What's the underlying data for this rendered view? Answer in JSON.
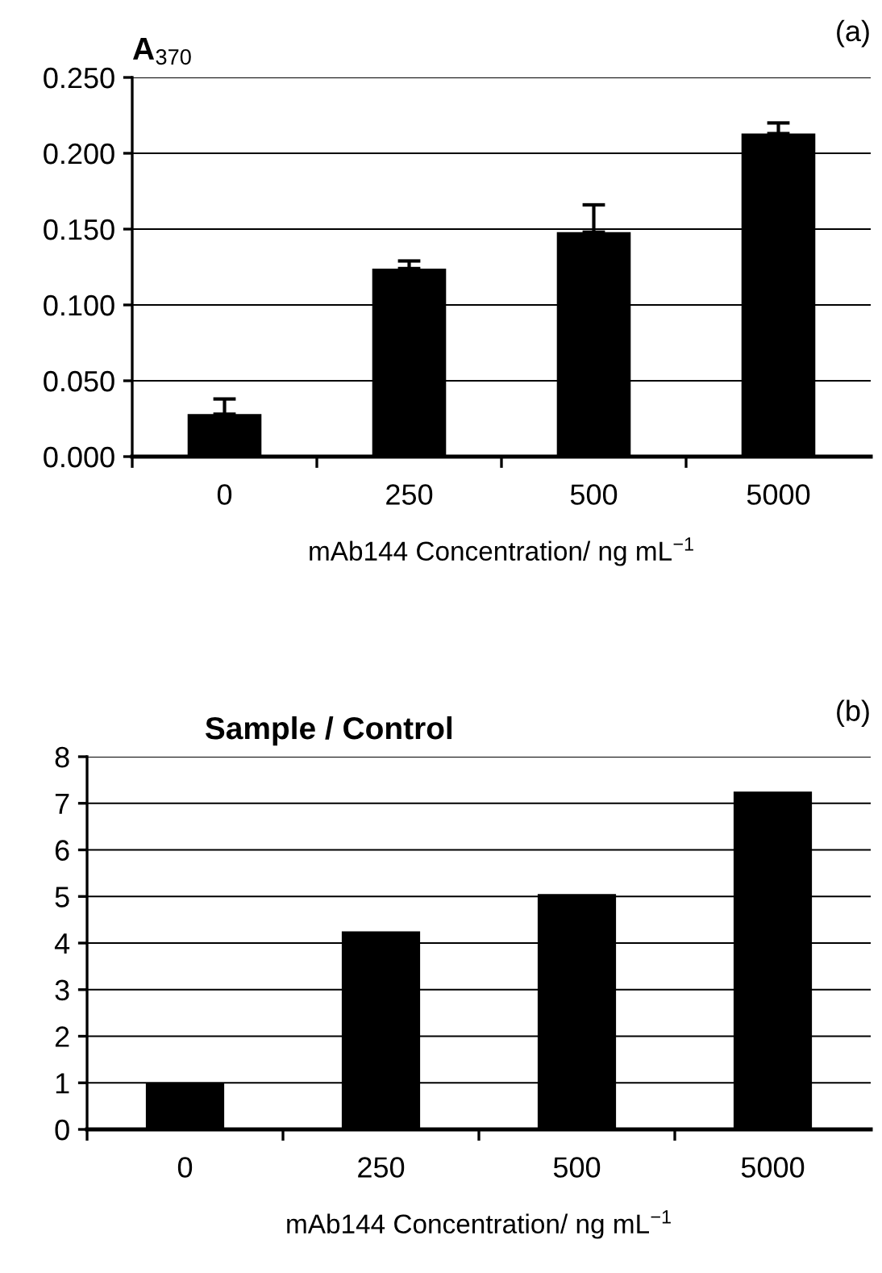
{
  "chart_data": [
    {
      "type": "bar",
      "ylabel": "A$_{370}$",
      "xlabel": "mAb144 Concentration/ ng mL$^{−1}$",
      "annotations": [
        "(a)"
      ],
      "categories": [
        "0",
        "250",
        "500",
        "5000"
      ],
      "values": [
        0.028,
        0.124,
        0.148,
        0.213
      ],
      "errors": [
        [
          0.028,
          0.038
        ],
        [
          0.124,
          0.129
        ],
        [
          0.148,
          0.166
        ],
        [
          0.213,
          0.22
        ]
      ],
      "color": "#000000",
      "ylim": [
        0,
        0.25
      ],
      "yticks": [
        {
          "value": 0,
          "label": "0.000"
        },
        {
          "value": 0.05,
          "label": "0.050"
        },
        {
          "value": 0.1,
          "label": "0.100"
        },
        {
          "value": 0.15,
          "label": "0.150"
        },
        {
          "value": 0.2,
          "label": "0.200"
        },
        {
          "value": 0.25,
          "label": "0.250"
        }
      ],
      "grid": "y"
    },
    {
      "type": "bar",
      "ylabel": "Sample / Control",
      "xlabel": "mAb144 Concentration/ ng mL$^{−1}$",
      "annotations": [
        "(b)"
      ],
      "categories": [
        "0",
        "250",
        "500",
        "5000"
      ],
      "values": [
        1.0,
        4.25,
        5.05,
        7.25
      ],
      "color": "#000000",
      "ylim": [
        0,
        8
      ],
      "yticks": [
        0,
        1,
        2,
        3,
        4,
        5,
        6,
        7,
        8
      ],
      "grid": "y"
    }
  ]
}
